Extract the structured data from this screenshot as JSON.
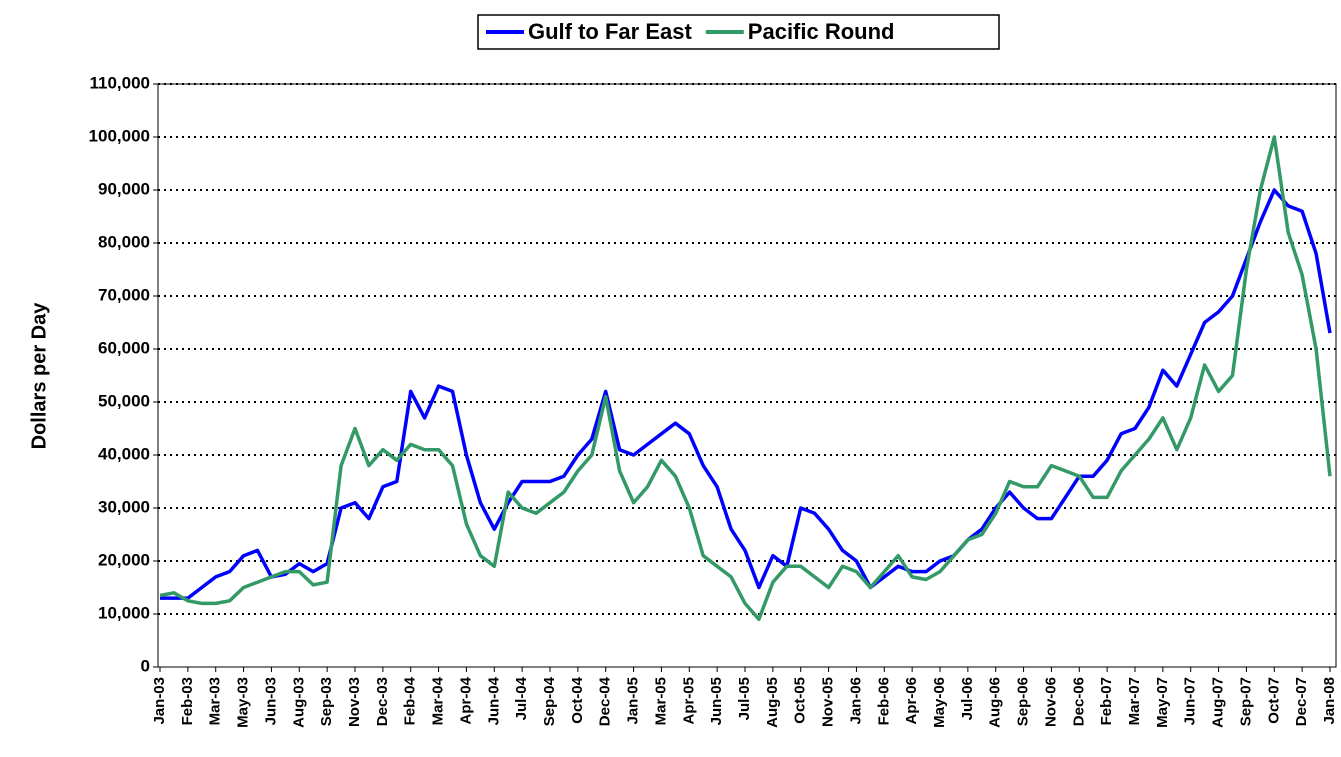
{
  "chart_data": {
    "type": "line",
    "y_axis_label": "Dollars per Day",
    "categories": [
      "Jan-03",
      null,
      "Feb-03",
      null,
      "Mar-03",
      null,
      "May-03",
      null,
      "Jun-03",
      null,
      "Aug-03",
      null,
      "Sep-03",
      null,
      "Nov-03",
      null,
      "Dec-03",
      null,
      "Feb-04",
      null,
      "Mar-04",
      null,
      "Apr-04",
      null,
      "Jun-04",
      null,
      "Jul-04",
      null,
      "Sep-04",
      null,
      "Oct-04",
      null,
      "Dec-04",
      null,
      "Jan-05",
      null,
      "Mar-05",
      null,
      "Apr-05",
      null,
      "Jun-05",
      null,
      "Jul-05",
      null,
      "Aug-05",
      null,
      "Oct-05",
      null,
      "Nov-05",
      null,
      "Jan-06",
      null,
      "Feb-06",
      null,
      "Apr-06",
      null,
      "May-06",
      null,
      "Jul-06",
      null,
      "Aug-06",
      null,
      "Sep-06",
      null,
      "Nov-06",
      null,
      "Dec-06",
      null,
      "Feb-07",
      null,
      "Mar-07",
      null,
      "May-07",
      null,
      "Jun-07",
      null,
      "Aug-07",
      null,
      "Sep-07",
      null,
      "Oct-07",
      null,
      "Dec-07",
      null,
      "Jan-08"
    ],
    "series": [
      {
        "name": "Gulf to Far East",
        "color": "#0000ff",
        "values": [
          13000,
          13000,
          13000,
          15000,
          17000,
          18000,
          21000,
          22000,
          17000,
          17500,
          19500,
          18000,
          19500,
          30000,
          31000,
          28000,
          34000,
          35000,
          52000,
          47000,
          53000,
          52000,
          40000,
          31000,
          26000,
          31000,
          35000,
          35000,
          35000,
          36000,
          40000,
          43000,
          52000,
          41000,
          40000,
          42000,
          44000,
          46000,
          44000,
          38000,
          34000,
          26000,
          22000,
          15000,
          21000,
          19000,
          30000,
          29000,
          26000,
          22000,
          20000,
          15000,
          17000,
          19000,
          18000,
          18000,
          20000,
          21000,
          24000,
          26000,
          30000,
          33000,
          30000,
          28000,
          28000,
          32000,
          36000,
          36000,
          39000,
          44000,
          45000,
          49000,
          56000,
          53000,
          59000,
          65000,
          67000,
          70000,
          77000,
          84000,
          90000,
          87000,
          86000,
          78000,
          63000
        ]
      },
      {
        "name": "Pacific Round",
        "color": "#339966",
        "values": [
          13500,
          14000,
          12500,
          12000,
          12000,
          12500,
          15000,
          16000,
          17000,
          18000,
          18000,
          15500,
          16000,
          38000,
          45000,
          38000,
          41000,
          39000,
          42000,
          41000,
          41000,
          38000,
          27000,
          21000,
          19000,
          33000,
          30000,
          29000,
          31000,
          33000,
          37000,
          40000,
          51000,
          37000,
          31000,
          34000,
          39000,
          36000,
          30000,
          21000,
          19000,
          17000,
          12000,
          9000,
          16000,
          19000,
          19000,
          17000,
          15000,
          19000,
          18000,
          15000,
          18000,
          21000,
          17000,
          16500,
          18000,
          21000,
          24000,
          25000,
          29000,
          35000,
          34000,
          34000,
          38000,
          37000,
          36000,
          32000,
          32000,
          37000,
          40000,
          43000,
          47000,
          41000,
          47000,
          57000,
          52000,
          55000,
          75000,
          90000,
          100000,
          82000,
          74000,
          60000,
          36000
        ]
      }
    ],
    "ylim": [
      0,
      110000
    ],
    "yticks": [
      0,
      {
        "value": 10000,
        "label": "10,000"
      },
      {
        "value": 20000,
        "label": "20,000"
      },
      {
        "value": 30000,
        "label": "30,000"
      },
      {
        "value": 40000,
        "label": "40,000"
      },
      {
        "value": 50000,
        "label": "50,000"
      },
      {
        "value": 60000,
        "label": "60,000"
      },
      {
        "value": 70000,
        "label": "70,000"
      },
      {
        "value": 80000,
        "label": "80,000"
      },
      {
        "value": 90000,
        "label": "90,000"
      },
      {
        "value": 100000,
        "label": "100,000"
      },
      {
        "value": 110000,
        "label": "110,000"
      }
    ],
    "grid": true,
    "legend": "top"
  }
}
